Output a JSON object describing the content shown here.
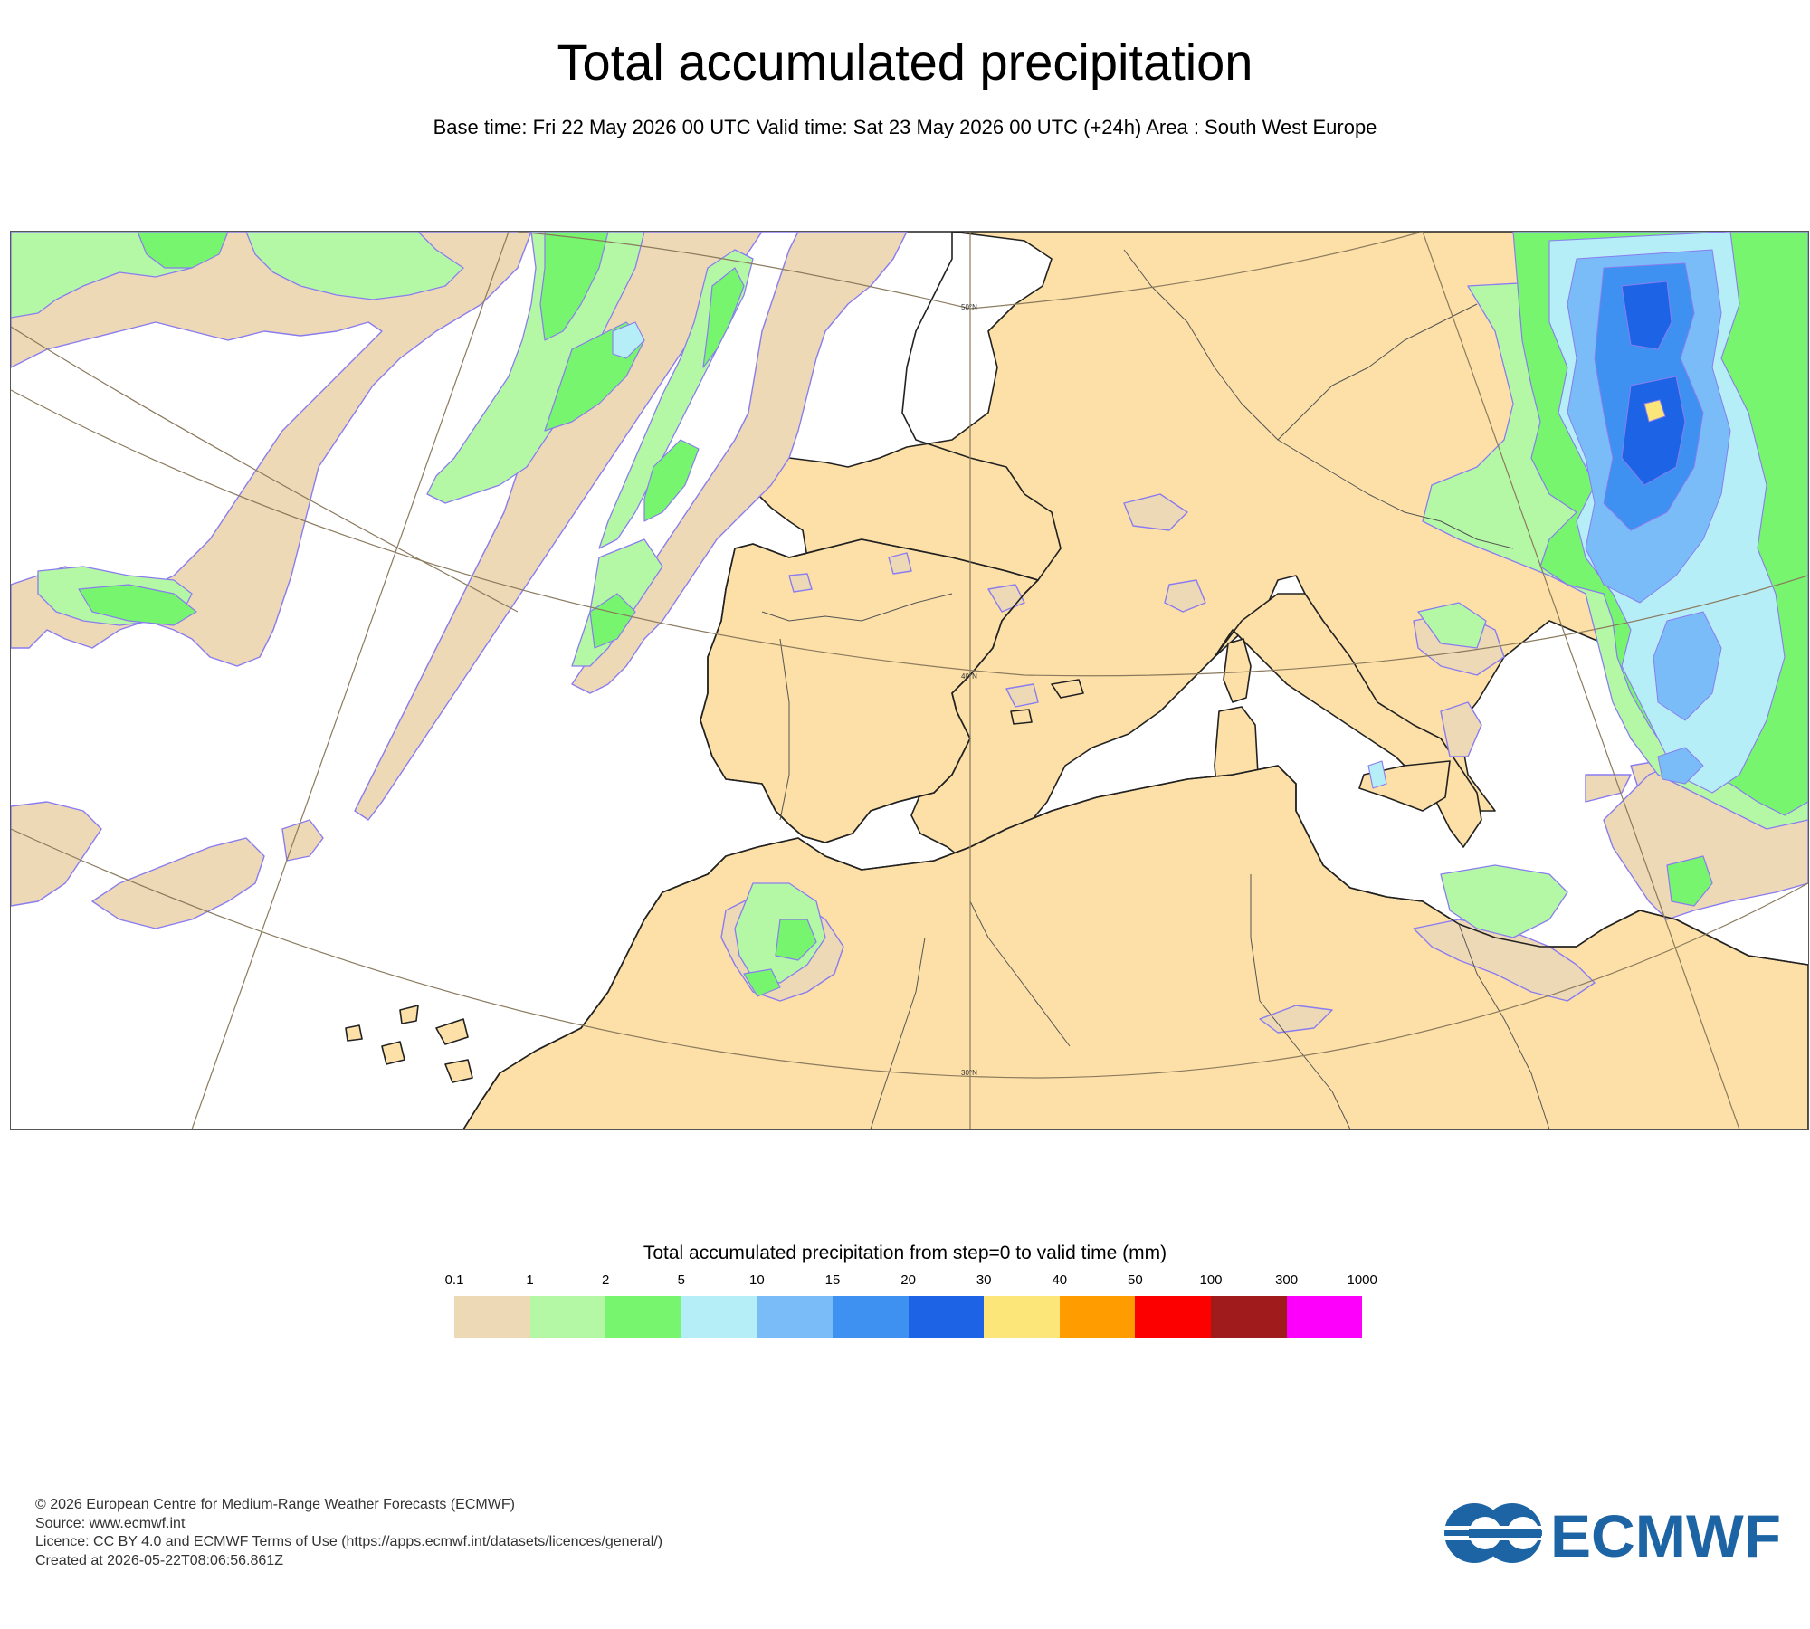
{
  "header": {
    "title": "Total accumulated precipitation",
    "subtitle": "Base time: Fri 22 May 2026 00 UTC Valid time: Sat 23 May 2026 00 UTC (+24h) Area : South West Europe"
  },
  "map": {
    "area": "South West Europe",
    "grid_labels": {
      "lat50": "50°N",
      "lat40": "40°N",
      "lat30": "30°N"
    },
    "land_color": "#fde0a7",
    "sea_color": "#ffffff",
    "coast_color": "#222222",
    "contour_color": "#8a7cf0"
  },
  "colorbar": {
    "title": "Total accumulated precipitation from step=0 to valid time (mm)",
    "levels": [
      "0.1",
      "1",
      "2",
      "5",
      "10",
      "15",
      "20",
      "30",
      "40",
      "50",
      "100",
      "300",
      "1000"
    ],
    "colors": [
      "#edd9b6",
      "#b4f8a6",
      "#78f56e",
      "#b6eef8",
      "#7abcf8",
      "#3e91f0",
      "#1c63e6",
      "#fce67a",
      "#ff9c00",
      "#fc0000",
      "#a01c1c",
      "#fc00fc"
    ]
  },
  "footer": {
    "copyright": "© 2026 European Centre for Medium-Range Weather Forecasts (ECMWF)",
    "source": "Source: www.ecmwf.int",
    "licence": "Licence: CC BY 4.0 and ECMWF Terms of Use (https://apps.ecmwf.int/datasets/licences/general/)",
    "created": "Created at 2026-05-22T08:06:56.861Z"
  },
  "logo": {
    "text": "ECMWF",
    "color": "#1c64a4",
    "icon": "ecmwf-logo-icon"
  }
}
